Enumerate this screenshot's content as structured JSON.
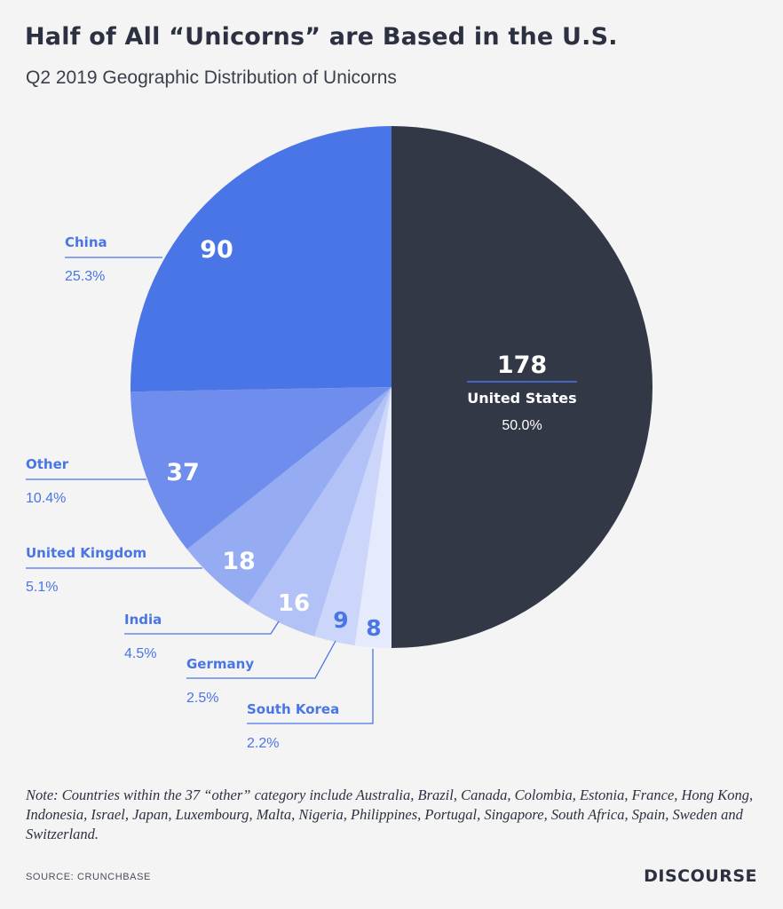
{
  "header": {
    "title": "Half of All “Unicorns” are Based in the U.S.",
    "subtitle": "Q2 2019 Geographic Distribution of Unicorns"
  },
  "chart_data": {
    "type": "pie",
    "slices": [
      {
        "name": "United States",
        "value": 178,
        "percent": "50.0%",
        "color": "#333847"
      },
      {
        "name": "South Korea",
        "value": 8,
        "percent": "2.2%",
        "color": "#e5eafc"
      },
      {
        "name": "Germany",
        "value": 9,
        "percent": "2.5%",
        "color": "#cbd6fa"
      },
      {
        "name": "India",
        "value": 16,
        "percent": "4.5%",
        "color": "#b2c2f6"
      },
      {
        "name": "United Kingdom",
        "value": 18,
        "percent": "5.1%",
        "color": "#95abf2"
      },
      {
        "name": "Other",
        "value": 37,
        "percent": "10.4%",
        "color": "#6e8ded"
      },
      {
        "name": "China",
        "value": 90,
        "percent": "25.3%",
        "color": "#4a75e6"
      }
    ],
    "label_color": "#4a75e6"
  },
  "footer": {
    "note": "Note: Countries within the 37 “other” category include Australia, Brazil, Canada, Colombia, Estonia, France, Hong Kong, Indonesia, Israel, Japan, Luxembourg, Malta, Nigeria, Philippines, Portugal, Singapore, South Africa, Spain, Sweden and Switzerland.",
    "source": "SOURCE: CRUNCHBASE",
    "brand": "DISCOURSE"
  }
}
